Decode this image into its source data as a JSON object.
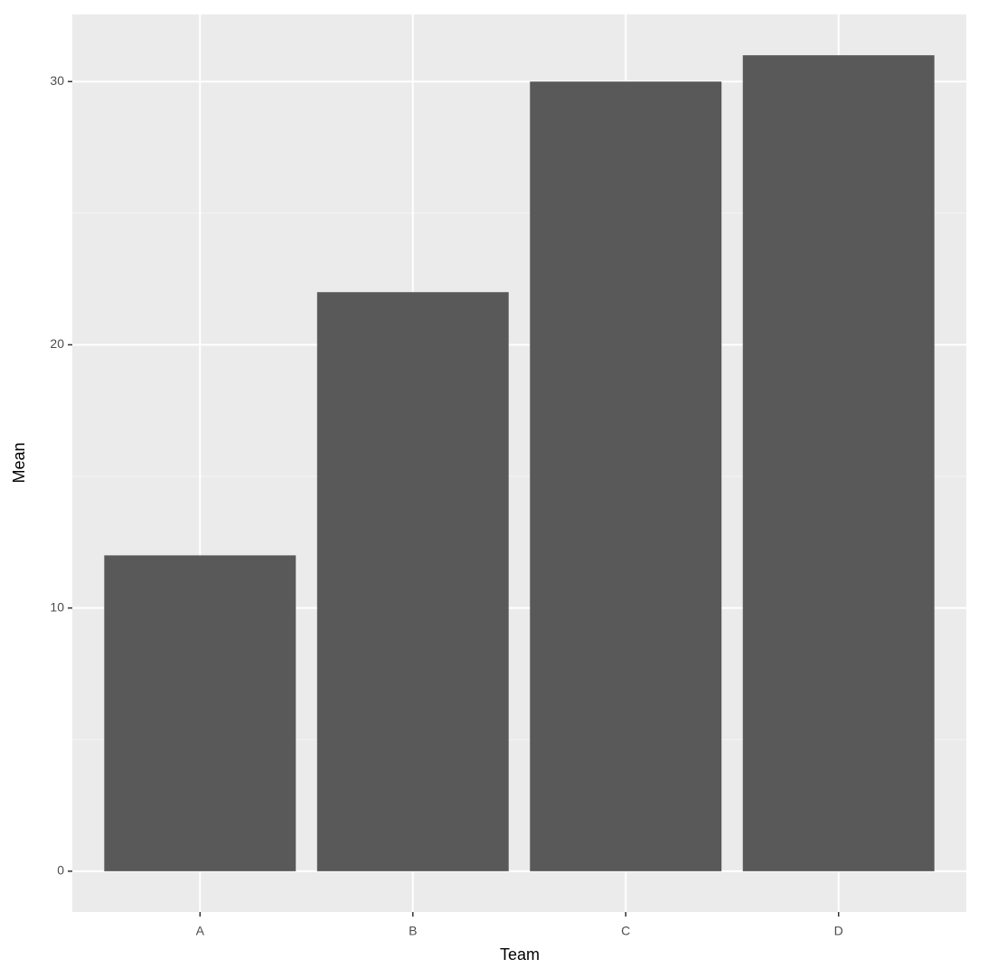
{
  "chart_data": {
    "type": "bar",
    "x_label": "Team",
    "y_label": "Mean",
    "categories": [
      "A",
      "B",
      "C",
      "D"
    ],
    "values": [
      12,
      22,
      30,
      31
    ],
    "color": "#595959",
    "ylim": [
      -1.55,
      32.55
    ],
    "yticks": [
      0,
      10,
      20,
      30
    ],
    "y_minor_grid": [
      5,
      15,
      25
    ],
    "grid": true
  }
}
